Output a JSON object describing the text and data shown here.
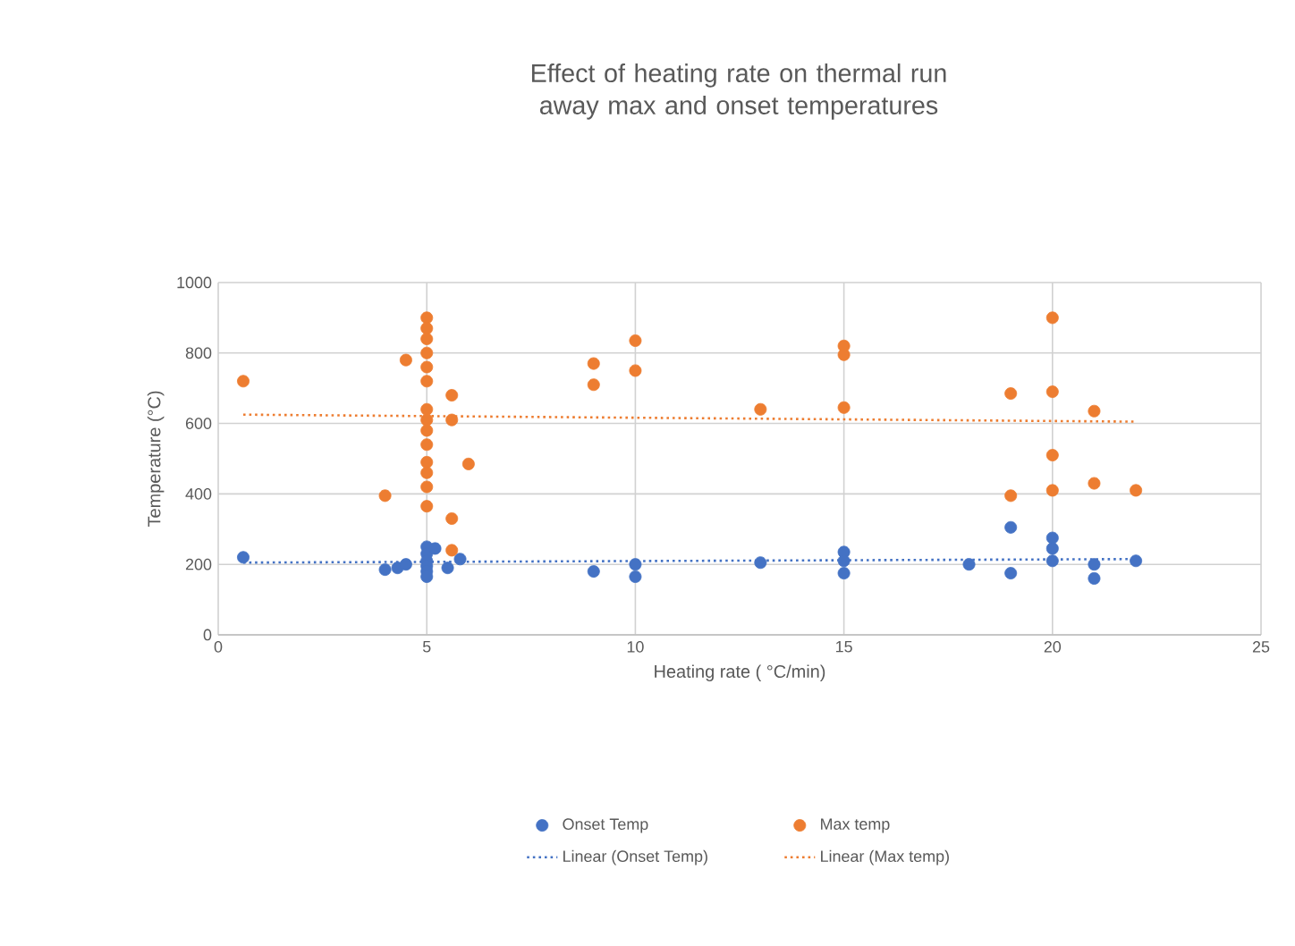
{
  "chart_data": {
    "type": "scatter",
    "title": "Effect of heating rate  on thermal run away max and onset temperatures",
    "xlabel": "Heating rate ( °C/min)",
    "ylabel": "Temperature (°C)",
    "xlim": [
      0,
      25
    ],
    "ylim": [
      0,
      1000
    ],
    "xticks": [
      0,
      5,
      10,
      15,
      20,
      25
    ],
    "yticks": [
      0,
      200,
      400,
      600,
      800,
      1000
    ],
    "grid": true,
    "legend": "bottom",
    "marker": "circle",
    "series": [
      {
        "name": "Onset Temp",
        "color": "#4472c4",
        "x": [
          0.6,
          4,
          4.3,
          4.5,
          5,
          5,
          5,
          5,
          5,
          5,
          5.2,
          5.5,
          5.8,
          9,
          10,
          10,
          13,
          15,
          15,
          15,
          18,
          19,
          19,
          20,
          20,
          20,
          21,
          21,
          22
        ],
        "values": [
          220,
          185,
          190,
          200,
          250,
          230,
          210,
          195,
          180,
          165,
          245,
          190,
          215,
          180,
          200,
          165,
          205,
          235,
          210,
          175,
          200,
          305,
          175,
          275,
          245,
          210,
          200,
          160,
          210
        ]
      },
      {
        "name": "Max temp",
        "color": "#ed7d31",
        "x": [
          0.6,
          4,
          4.5,
          5,
          5,
          5,
          5,
          5,
          5,
          5,
          5,
          5,
          5,
          5,
          5,
          5,
          5,
          5.6,
          5.6,
          5.6,
          5.6,
          6,
          9,
          9,
          10,
          10,
          13,
          15,
          15,
          15,
          19,
          19,
          20,
          20,
          20,
          20,
          21,
          21,
          22
        ],
        "values": [
          720,
          395,
          780,
          900,
          870,
          840,
          800,
          760,
          720,
          640,
          610,
          580,
          540,
          490,
          460,
          420,
          365,
          680,
          610,
          330,
          240,
          485,
          770,
          710,
          835,
          750,
          640,
          820,
          795,
          645,
          685,
          395,
          900,
          690,
          510,
          410,
          635,
          430,
          410
        ]
      },
      {
        "name": "Linear (Onset Temp)",
        "type": "line",
        "line_style": "dotted",
        "marker": "none",
        "color": "#4472c4",
        "x": [
          0.6,
          22
        ],
        "values": [
          205,
          215
        ]
      },
      {
        "name": "Linear (Max temp)",
        "type": "line",
        "line_style": "dotted",
        "marker": "none",
        "color": "#ed7d31",
        "x": [
          0.6,
          22
        ],
        "values": [
          625,
          605
        ]
      }
    ]
  }
}
